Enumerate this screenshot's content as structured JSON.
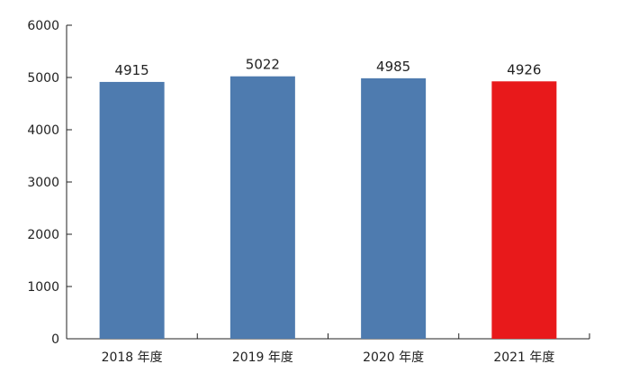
{
  "chart_data": {
    "type": "bar",
    "categories": [
      "2018 年度",
      "2019 年度",
      "2020 年度",
      "2021 年度"
    ],
    "values": [
      4915,
      5022,
      4985,
      4926
    ],
    "data_labels": [
      "4915",
      "5022",
      "4985",
      "4926"
    ],
    "ylim": [
      0,
      6000
    ],
    "y_ticks": [
      0,
      1000,
      2000,
      3000,
      4000,
      5000,
      6000
    ],
    "y_tick_labels": [
      "0",
      "1000",
      "2000",
      "3000",
      "4000",
      "5000",
      "6000"
    ],
    "bar_colors": [
      "#4E7BAF",
      "#4E7BAF",
      "#4E7BAF",
      "#E8191B"
    ],
    "grid": false,
    "legend": "none"
  }
}
